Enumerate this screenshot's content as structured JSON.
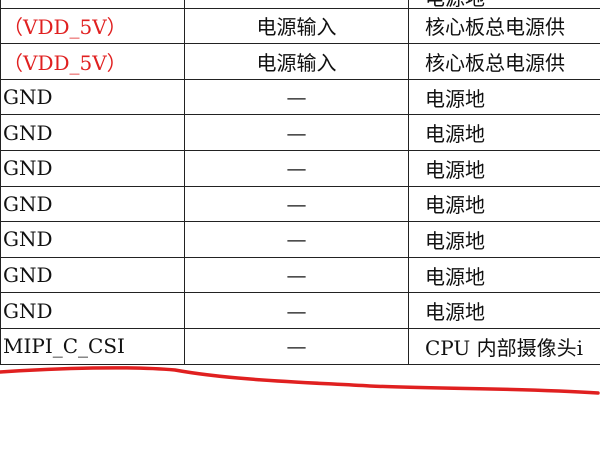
{
  "table": {
    "rows": [
      {
        "signal": "",
        "type": "",
        "desc": "电源地",
        "signal_red": false
      },
      {
        "signal": "（VDD_5V）",
        "type": "电源输入",
        "desc": "核心板总电源供",
        "signal_red": true
      },
      {
        "signal": "（VDD_5V）",
        "type": "电源输入",
        "desc": "核心板总电源供",
        "signal_red": true
      },
      {
        "signal": "GND",
        "type": "—",
        "desc": "电源地",
        "signal_red": false
      },
      {
        "signal": "GND",
        "type": "—",
        "desc": "电源地",
        "signal_red": false
      },
      {
        "signal": "GND",
        "type": "—",
        "desc": "电源地",
        "signal_red": false
      },
      {
        "signal": "GND",
        "type": "—",
        "desc": "电源地",
        "signal_red": false
      },
      {
        "signal": "GND",
        "type": "—",
        "desc": "电源地",
        "signal_red": false
      },
      {
        "signal": "GND",
        "type": "—",
        "desc": "电源地",
        "signal_red": false
      },
      {
        "signal": "GND",
        "type": "—",
        "desc": "电源地",
        "signal_red": false
      },
      {
        "signal": "MIPI_C_CSI",
        "type": "—",
        "desc": "CPU 内部摄像头i",
        "signal_red": false
      }
    ]
  },
  "annotation_color": "#e02020"
}
